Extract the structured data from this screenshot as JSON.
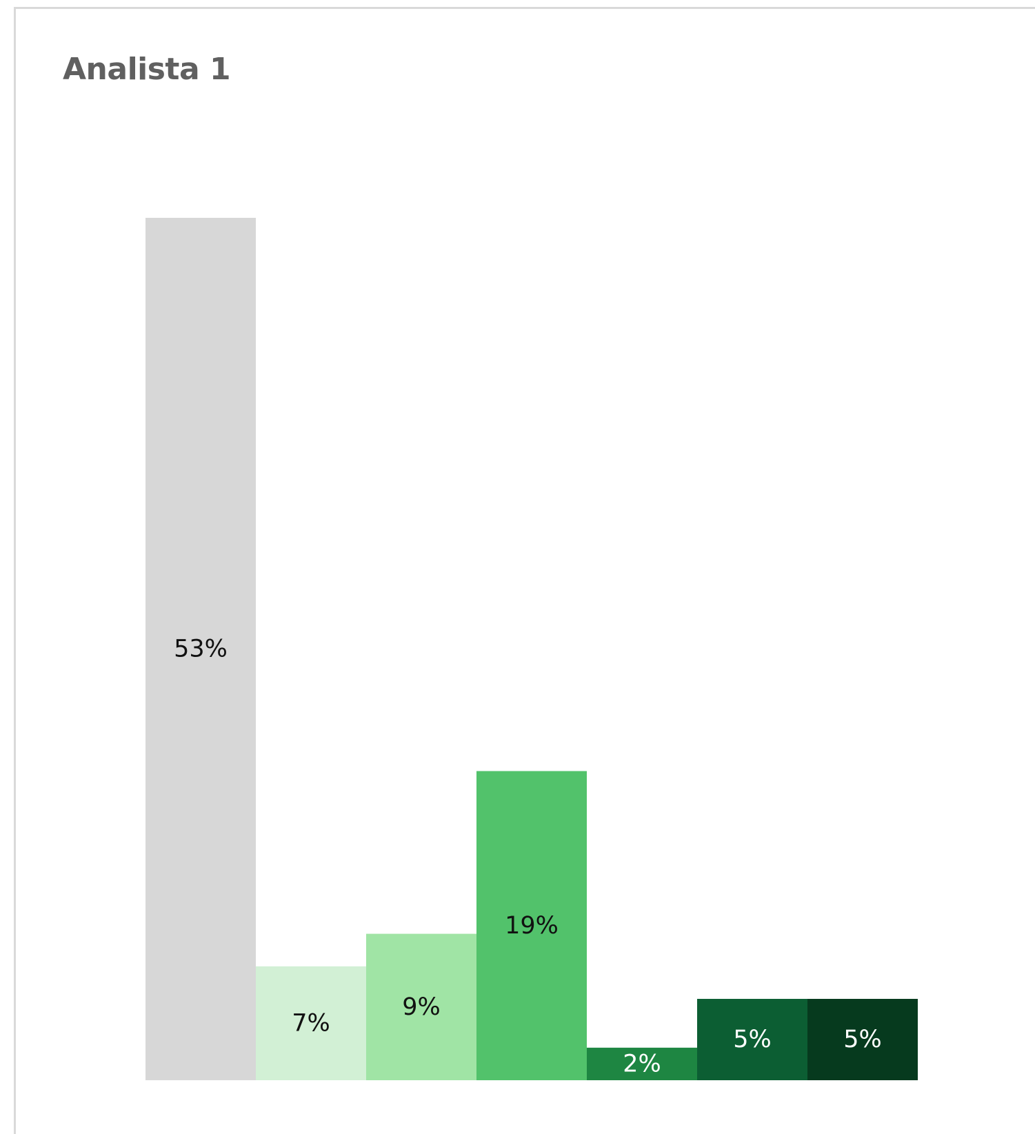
{
  "card": {
    "title": "Analista 1"
  },
  "chart_data": {
    "type": "bar",
    "title": "Analista 1",
    "xlabel": "",
    "ylabel": "",
    "ylim": [
      0,
      53
    ],
    "grid": false,
    "legend": "none",
    "values": [
      53,
      7,
      9,
      19,
      2,
      5,
      5
    ],
    "labels": [
      "53%",
      "7%",
      "9%",
      "19%",
      "2%",
      "5%",
      "5%"
    ],
    "colors": [
      "#d7d7d7",
      "#d2f0d5",
      "#a0e4a5",
      "#52c26b",
      "#1e8642",
      "#0c5e33",
      "#063a1e"
    ],
    "label_colors": [
      "#111111",
      "#111111",
      "#111111",
      "#111111",
      "#ffffff",
      "#ffffff",
      "#ffffff"
    ]
  }
}
